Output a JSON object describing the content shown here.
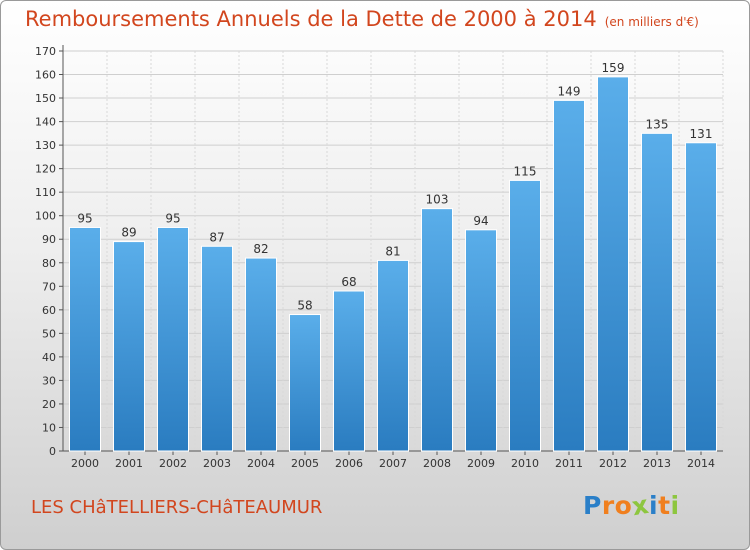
{
  "chart_data": {
    "type": "bar",
    "title": "Remboursements Annuels de la Dette de 2000 à 2014",
    "unit": "(en milliers d'€)",
    "categories": [
      "2000",
      "2001",
      "2002",
      "2003",
      "2004",
      "2005",
      "2006",
      "2007",
      "2008",
      "2009",
      "2010",
      "2011",
      "2012",
      "2013",
      "2014"
    ],
    "values": [
      95,
      89,
      95,
      87,
      82,
      58,
      68,
      81,
      103,
      94,
      115,
      149,
      159,
      135,
      131
    ],
    "ylim": [
      0,
      170
    ],
    "yticks": [
      0,
      10,
      20,
      30,
      40,
      50,
      60,
      70,
      80,
      90,
      100,
      110,
      120,
      130,
      140,
      150,
      160,
      170
    ],
    "grid": true,
    "bar_color": "#3c96dc"
  },
  "footer": {
    "city": "LES CHâTELLIERS-CHâTEAUMUR",
    "logo_letters": [
      "P",
      "r",
      "o",
      "x",
      "i",
      "t",
      "i"
    ],
    "logo_colors": [
      "#2a7fc8",
      "#f07f1e",
      "#f07f1e",
      "#8dc63f",
      "#2a7fc8",
      "#f07f1e",
      "#8dc63f"
    ]
  }
}
